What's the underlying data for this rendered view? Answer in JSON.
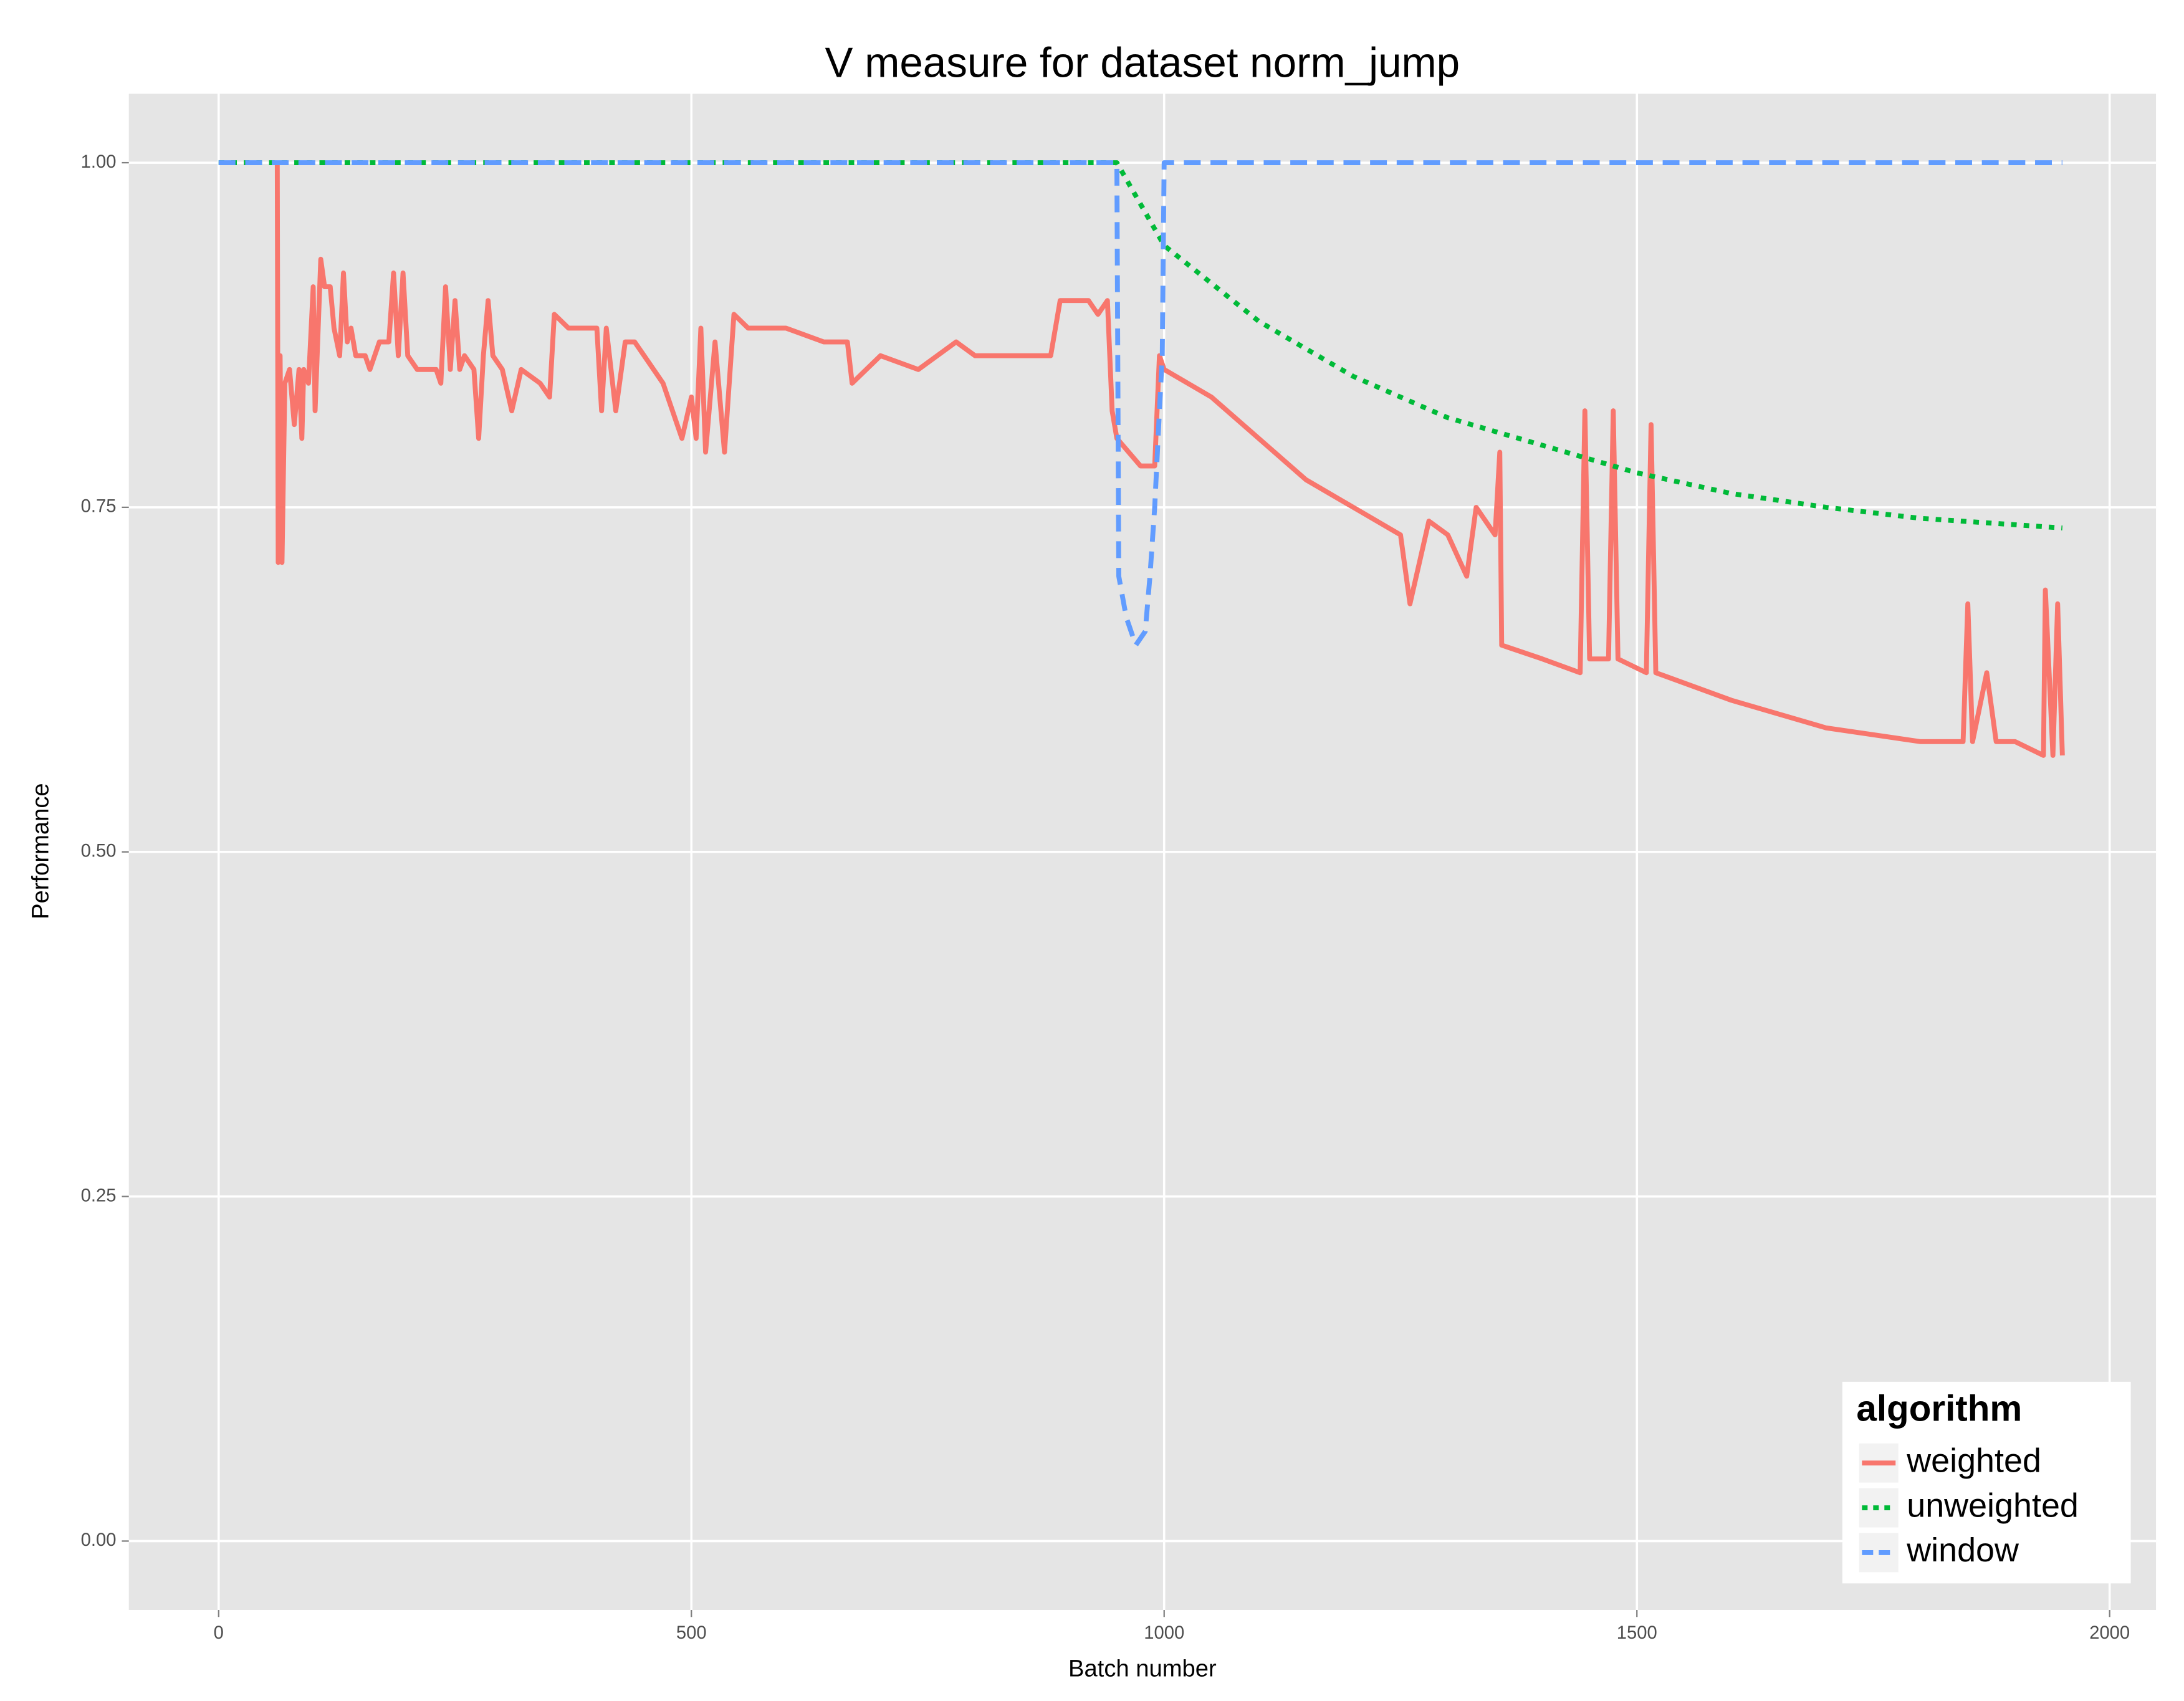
{
  "chart_data": {
    "type": "line",
    "title": "V measure for dataset norm_jump",
    "x_label": "Batch number",
    "y_label": "Performance",
    "xlim": [
      -95,
      2049
    ],
    "ylim": [
      -0.05,
      1.05
    ],
    "xticks": [
      0,
      500,
      1000,
      1500,
      2000
    ],
    "yticks": [
      {
        "value": 0,
        "label": "0.00"
      },
      {
        "value": 0.25,
        "label": "0.25"
      },
      {
        "value": 0.5,
        "label": "0.50"
      },
      {
        "value": 0.75,
        "label": "0.75"
      },
      {
        "value": 1,
        "label": "1.00"
      }
    ],
    "grid": true,
    "legend_title": "algorithm",
    "legend_position": "bottom-right",
    "series": [
      {
        "name": "weighted",
        "color": "#F8766D",
        "dash": "solid",
        "x": [
          62,
          63,
          65,
          67,
          70,
          75,
          80,
          85,
          88,
          90,
          95,
          100,
          102,
          108,
          112,
          118,
          122,
          128,
          132,
          136,
          140,
          145,
          155,
          160,
          165,
          170,
          180,
          185,
          190,
          195,
          200,
          210,
          230,
          235,
          240,
          245,
          250,
          255,
          260,
          270,
          275,
          280,
          285,
          290,
          300,
          310,
          320,
          340,
          350,
          355,
          370,
          400,
          405,
          410,
          420,
          430,
          440,
          450,
          470,
          490,
          500,
          505,
          510,
          515,
          525,
          535,
          545,
          560,
          600,
          640,
          665,
          670,
          700,
          740,
          760,
          780,
          800,
          850,
          880,
          890,
          920,
          930,
          940,
          945,
          950,
          975,
          990,
          995,
          1000,
          1050,
          1100,
          1150,
          1200,
          1250,
          1260,
          1280,
          1300,
          1320,
          1330,
          1350,
          1355,
          1357,
          1400,
          1440,
          1445,
          1450,
          1470,
          1475,
          1480,
          1510,
          1515,
          1520,
          1600,
          1700,
          1800,
          1845,
          1850,
          1855,
          1870,
          1880,
          1900,
          1930,
          1932,
          1940,
          1945,
          1950
        ],
        "values": [
          1.0,
          0.71,
          0.86,
          0.71,
          0.84,
          0.85,
          0.81,
          0.85,
          0.8,
          0.85,
          0.84,
          0.91,
          0.82,
          0.93,
          0.91,
          0.91,
          0.88,
          0.86,
          0.92,
          0.87,
          0.88,
          0.86,
          0.86,
          0.85,
          0.86,
          0.87,
          0.87,
          0.92,
          0.86,
          0.92,
          0.86,
          0.85,
          0.85,
          0.84,
          0.91,
          0.85,
          0.9,
          0.85,
          0.86,
          0.85,
          0.8,
          0.86,
          0.9,
          0.86,
          0.85,
          0.82,
          0.85,
          0.84,
          0.83,
          0.89,
          0.88,
          0.88,
          0.82,
          0.88,
          0.82,
          0.87,
          0.87,
          0.86,
          0.84,
          0.8,
          0.83,
          0.8,
          0.88,
          0.79,
          0.87,
          0.79,
          0.89,
          0.88,
          0.88,
          0.87,
          0.87,
          0.84,
          0.86,
          0.85,
          0.86,
          0.87,
          0.86,
          0.86,
          0.86,
          0.9,
          0.9,
          0.89,
          0.9,
          0.82,
          0.8,
          0.78,
          0.78,
          0.86,
          0.85,
          0.83,
          0.8,
          0.77,
          0.75,
          0.73,
          0.68,
          0.74,
          0.73,
          0.7,
          0.75,
          0.73,
          0.79,
          0.65,
          0.64,
          0.63,
          0.82,
          0.64,
          0.64,
          0.82,
          0.64,
          0.63,
          0.81,
          0.63,
          0.61,
          0.59,
          0.58,
          0.58,
          0.68,
          0.58,
          0.63,
          0.58,
          0.58,
          0.57,
          0.69,
          0.57,
          0.68,
          0.57
        ]
      },
      {
        "name": "unweighted",
        "color": "#00BA38",
        "dash": "dotted",
        "x": [
          0,
          950,
          1000,
          1100,
          1200,
          1300,
          1400,
          1500,
          1600,
          1700,
          1800,
          1950
        ],
        "values": [
          1.0,
          1.0,
          0.94,
          0.885,
          0.845,
          0.815,
          0.795,
          0.775,
          0.76,
          0.75,
          0.742,
          0.735
        ]
      },
      {
        "name": "window",
        "color": "#619CFF",
        "dash": "dashed",
        "x": [
          0,
          950,
          952,
          960,
          970,
          980,
          985,
          990,
          995,
          998,
          1000,
          1950
        ],
        "values": [
          1.0,
          1.0,
          0.7,
          0.67,
          0.65,
          0.66,
          0.7,
          0.75,
          0.82,
          0.86,
          1.0,
          1.0
        ]
      }
    ]
  }
}
